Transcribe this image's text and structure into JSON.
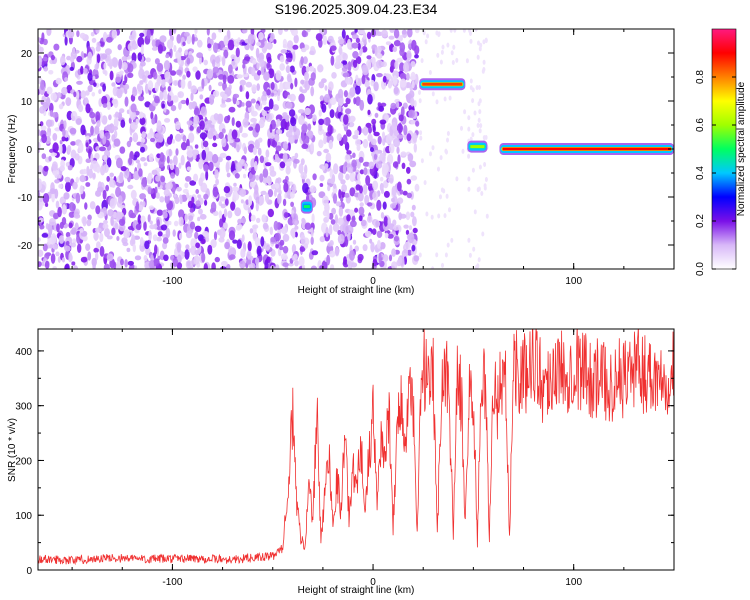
{
  "title": "S196.2025.309.04.23.E34",
  "chart_data": [
    {
      "type": "heatmap",
      "title": "S196.2025.309.04.23.E34",
      "xlabel": "Height of straight line (km)",
      "ylabel": "Frequency (Hz)",
      "xlim": [
        -167,
        150
      ],
      "ylim": [
        -25,
        25
      ],
      "xticks": [
        -100,
        0,
        100
      ],
      "yticks": [
        -20,
        -10,
        0,
        10,
        20
      ],
      "colorbar": {
        "label": "Normalized spectral amplitude",
        "range": [
          0,
          1
        ],
        "ticks": [
          "0.0",
          "0.2",
          "0.4",
          "0.6",
          "0.8"
        ],
        "colors": [
          "#ffffff",
          "#d8b8f8",
          "#7a10e8",
          "#0000ff",
          "#00c8ff",
          "#00ff60",
          "#a0ff00",
          "#ffff00",
          "#ff8000",
          "#ff0000",
          "#ff1a80"
        ]
      },
      "regions": [
        {
          "name": "noise",
          "x": [
            -167,
            22
          ],
          "freq_range": [
            -25,
            25
          ],
          "amplitude": "0.0-0.3"
        },
        {
          "name": "gap",
          "x": [
            -38,
            -36
          ],
          "freq_range": [
            -25,
            25
          ],
          "amplitude": "0.0"
        },
        {
          "name": "blob",
          "x": [
            -36,
            -30
          ],
          "freq": -12,
          "amplitude": 0.5
        },
        {
          "name": "gap",
          "x": [
            -29,
            -27
          ],
          "freq_range": [
            -25,
            25
          ],
          "amplitude": "0.0"
        },
        {
          "name": "tone",
          "x": [
            23,
            46
          ],
          "freq": 13.5,
          "amplitude": 0.85
        },
        {
          "name": "tone",
          "x": [
            47,
            57
          ],
          "freq": 0.5,
          "amplitude": 0.6
        },
        {
          "name": "gap",
          "x": [
            58,
            62
          ],
          "freq_range": [
            -25,
            25
          ],
          "amplitude": "0.0"
        },
        {
          "name": "tone",
          "x": [
            63,
            150
          ],
          "freq": 0,
          "amplitude": 0.9
        }
      ]
    },
    {
      "type": "line",
      "xlabel": "Height of straight line (km)",
      "ylabel": "SNR (10 * v/v)",
      "xlim": [
        -167,
        150
      ],
      "ylim": [
        0,
        440
      ],
      "xticks": [
        -100,
        0,
        100
      ],
      "yticks": [
        0,
        100,
        200,
        300,
        400
      ],
      "color": "#f03030",
      "series": [
        {
          "name": "SNR",
          "x": [
            -167,
            -150,
            -130,
            -110,
            -90,
            -70,
            -50,
            -45,
            -42,
            -40,
            -38,
            -36,
            -34,
            -32,
            -30,
            -28,
            -26,
            -24,
            -22,
            -20,
            -18,
            -16,
            -14,
            -12,
            -10,
            -8,
            -6,
            -4,
            -2,
            0,
            2,
            4,
            6,
            8,
            10,
            12,
            14,
            16,
            18,
            20,
            22,
            24,
            26,
            28,
            30,
            32,
            34,
            36,
            38,
            40,
            42,
            44,
            46,
            48,
            50,
            52,
            54,
            56,
            58,
            60,
            62,
            64,
            66,
            68,
            70,
            75,
            80,
            85,
            90,
            95,
            100,
            110,
            120,
            130,
            140,
            150
          ],
          "y": [
            20,
            18,
            22,
            20,
            21,
            19,
            25,
            40,
            180,
            280,
            120,
            60,
            40,
            160,
            80,
            300,
            50,
            140,
            220,
            80,
            170,
            110,
            260,
            90,
            190,
            150,
            240,
            100,
            210,
            280,
            120,
            250,
            190,
            300,
            80,
            260,
            310,
            220,
            330,
            290,
            60,
            340,
            370,
            310,
            350,
            60,
            330,
            380,
            300,
            70,
            350,
            320,
            80,
            340,
            310,
            50,
            360,
            330,
            60,
            350,
            300,
            360,
            330,
            60,
            380,
            350,
            400,
            330,
            370,
            360,
            380,
            350,
            340,
            370,
            355,
            365
          ]
        }
      ]
    }
  ]
}
